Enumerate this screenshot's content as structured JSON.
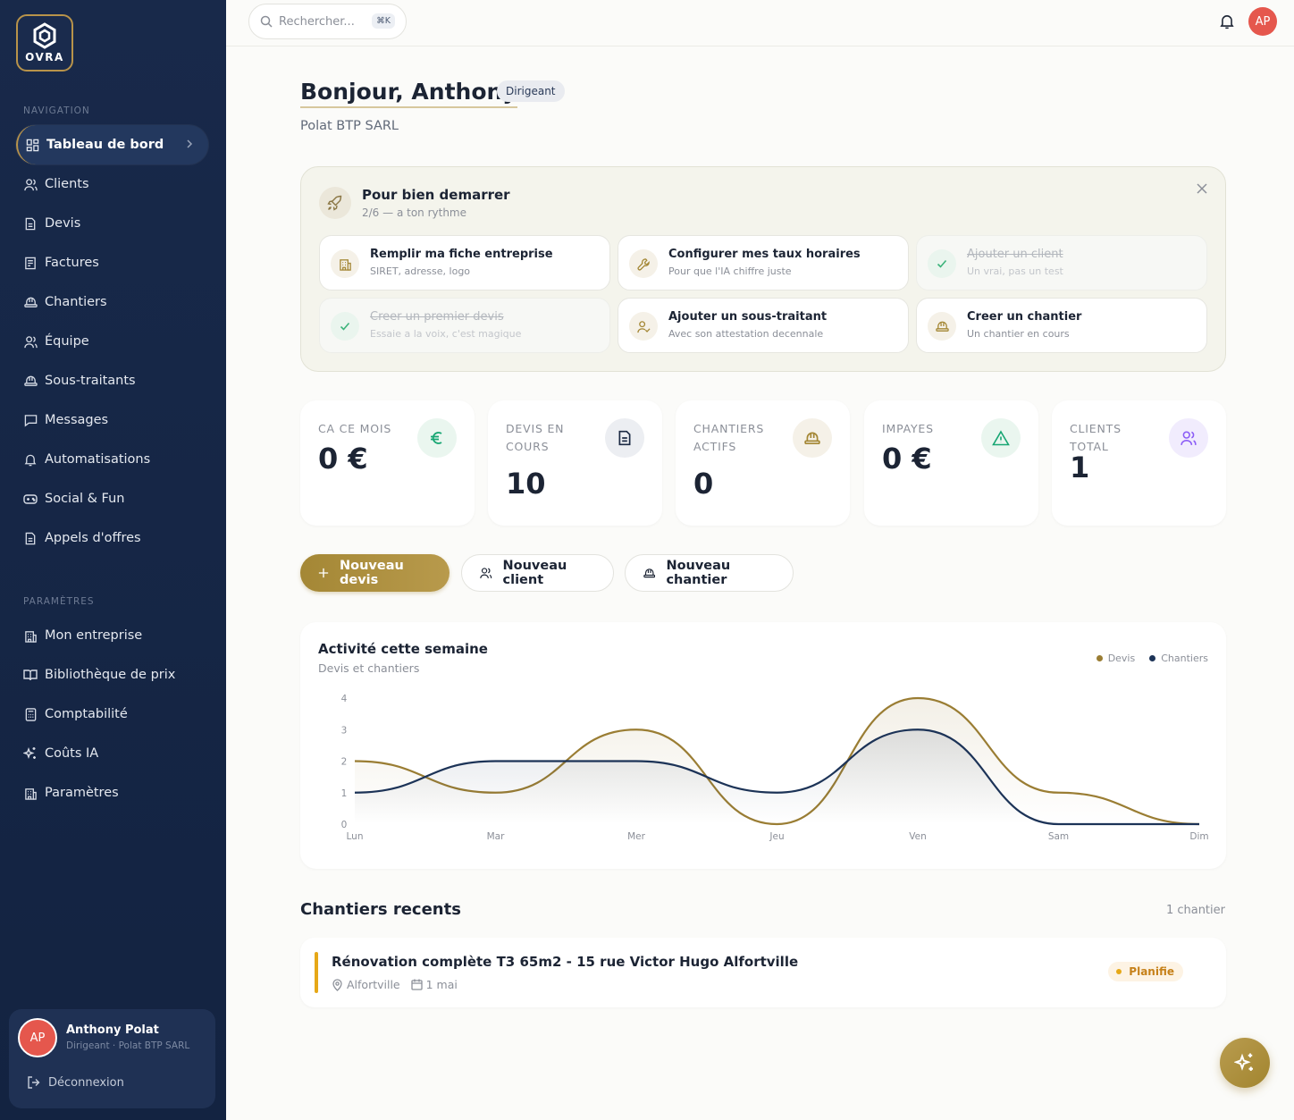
{
  "brand": {
    "name": "OVRA"
  },
  "sidebar": {
    "nav_title": "NAVIGATION",
    "items": [
      {
        "label": "Tableau de bord",
        "icon": "dashboard-icon"
      },
      {
        "label": "Clients",
        "icon": "users-icon"
      },
      {
        "label": "Devis",
        "icon": "document-icon"
      },
      {
        "label": "Factures",
        "icon": "invoice-icon"
      },
      {
        "label": "Chantiers",
        "icon": "hardhat-icon"
      },
      {
        "label": "Équipe",
        "icon": "team-icon"
      },
      {
        "label": "Sous-traitants",
        "icon": "hardhat-icon"
      },
      {
        "label": "Messages",
        "icon": "chat-icon"
      },
      {
        "label": "Automatisations",
        "icon": "bell-icon"
      },
      {
        "label": "Social & Fun",
        "icon": "gamepad-icon"
      },
      {
        "label": "Appels d'offres",
        "icon": "document-icon"
      }
    ],
    "settings_title": "PARAMÈTRES",
    "settings_items": [
      {
        "label": "Mon entreprise",
        "icon": "building-icon"
      },
      {
        "label": "Bibliothèque de prix",
        "icon": "book-icon"
      },
      {
        "label": "Comptabilité",
        "icon": "calculator-icon"
      },
      {
        "label": "Coûts IA",
        "icon": "sparkles-icon"
      },
      {
        "label": "Paramètres",
        "icon": "building-icon"
      }
    ],
    "user": {
      "initials": "AP",
      "name": "Anthony Polat",
      "role": "Dirigeant · Polat BTP SARL"
    },
    "logout_label": "Déconnexion"
  },
  "topbar": {
    "search_placeholder": "Rechercher...",
    "shortcut": "⌘K",
    "avatar_initials": "AP"
  },
  "greeting": {
    "title": "Bonjour, Anthony",
    "role_badge": "Dirigeant",
    "company": "Polat BTP SARL"
  },
  "onboarding": {
    "title": "Pour bien demarrer",
    "progress": "2/6 — a ton rythme",
    "tasks": [
      {
        "title": "Remplir ma fiche entreprise",
        "subtitle": "SIRET, adresse, logo",
        "done": false,
        "icon": "building-icon"
      },
      {
        "title": "Configurer mes taux horaires",
        "subtitle": "Pour que l'IA chiffre juste",
        "done": false,
        "icon": "wrench-icon"
      },
      {
        "title": "Ajouter un client",
        "subtitle": "Un vrai, pas un test",
        "done": true,
        "icon": "check-icon"
      },
      {
        "title": "Creer un premier devis",
        "subtitle": "Essaie a la voix, c'est magique",
        "done": true,
        "icon": "check-icon"
      },
      {
        "title": "Ajouter un sous-traitant",
        "subtitle": "Avec son attestation decennale",
        "done": false,
        "icon": "user-check-icon"
      },
      {
        "title": "Creer un chantier",
        "subtitle": "Un chantier en cours",
        "done": false,
        "icon": "hardhat-icon"
      }
    ]
  },
  "kpis": [
    {
      "label": "CA CE MOIS",
      "value": "0 €",
      "icon": "euro-icon",
      "color": "#17a673"
    },
    {
      "label": "DEVIS EN COURS",
      "value": "10",
      "icon": "document-icon",
      "color": "#2a3a58"
    },
    {
      "label": "CHANTIERS ACTIFS",
      "value": "0",
      "icon": "hardhat-icon",
      "color": "#a48735"
    },
    {
      "label": "IMPAYES",
      "value": "0 €",
      "icon": "warning-icon",
      "color": "#17a673"
    },
    {
      "label": "CLIENTS TOTAL",
      "value": "1",
      "icon": "users-icon",
      "color": "#8b5cf6"
    }
  ],
  "actions": {
    "new_quote": "Nouveau devis",
    "new_client": "Nouveau client",
    "new_site": "Nouveau chantier"
  },
  "chart": {
    "title": "Activité cette semaine",
    "subtitle": "Devis et chantiers"
  },
  "chart_data": {
    "type": "area",
    "categories": [
      "Lun",
      "Mar",
      "Mer",
      "Jeu",
      "Ven",
      "Sam",
      "Dim"
    ],
    "series": [
      {
        "name": "Devis",
        "values": [
          2,
          1,
          3,
          0,
          4,
          1,
          0
        ],
        "color": "#9a7d33"
      },
      {
        "name": "Chantiers",
        "values": [
          1,
          2,
          2,
          1,
          3,
          0,
          0
        ],
        "color": "#1c3357"
      }
    ],
    "y_ticks": [
      "0",
      "1",
      "2",
      "3",
      "4"
    ],
    "ylim": [
      0,
      4
    ],
    "legend": "top-right"
  },
  "recent": {
    "title": "Chantiers recents",
    "count": "1 chantier",
    "items": [
      {
        "name": "Rénovation complète T3 65m2 - 15 rue Victor Hugo Alfortville",
        "city": "Alfortville",
        "date": "1 mai",
        "status": "Planifie"
      }
    ]
  }
}
